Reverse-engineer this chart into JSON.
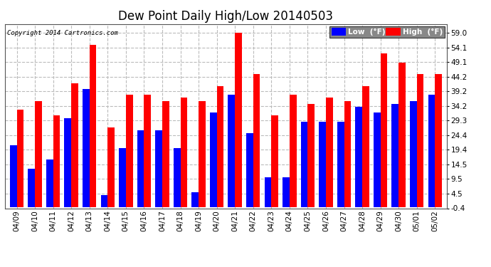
{
  "title": "Dew Point Daily High/Low 20140503",
  "copyright": "Copyright 2014 Cartronics.com",
  "legend_low": "Low  (°F)",
  "legend_high": "High  (°F)",
  "dates": [
    "04/09",
    "04/10",
    "04/11",
    "04/12",
    "04/13",
    "04/14",
    "04/15",
    "04/16",
    "04/17",
    "04/18",
    "04/19",
    "04/20",
    "04/21",
    "04/22",
    "04/23",
    "04/24",
    "04/25",
    "04/26",
    "04/27",
    "04/28",
    "04/29",
    "04/30",
    "05/01",
    "05/02"
  ],
  "low": [
    21,
    13,
    16,
    30,
    40,
    4,
    20,
    26,
    26,
    20,
    5,
    32,
    38,
    25,
    10,
    10,
    29,
    29,
    29,
    34,
    32,
    35,
    36,
    38
  ],
  "high": [
    33,
    36,
    31,
    42,
    55,
    27,
    38,
    38,
    36,
    37,
    36,
    41,
    59,
    45,
    31,
    38,
    35,
    37,
    36,
    41,
    52,
    49,
    45,
    45
  ],
  "ylim": [
    -0.4,
    62.0
  ],
  "yticks": [
    -0.4,
    4.5,
    9.5,
    14.5,
    19.4,
    24.4,
    29.3,
    34.2,
    39.2,
    44.2,
    49.1,
    54.1,
    59.0
  ],
  "bar_color_low": "#0000ff",
  "bar_color_high": "#ff0000",
  "background_color": "#ffffff",
  "grid_color": "#bbbbbb",
  "title_fontsize": 12,
  "tick_fontsize": 7.5,
  "bar_width": 0.38
}
